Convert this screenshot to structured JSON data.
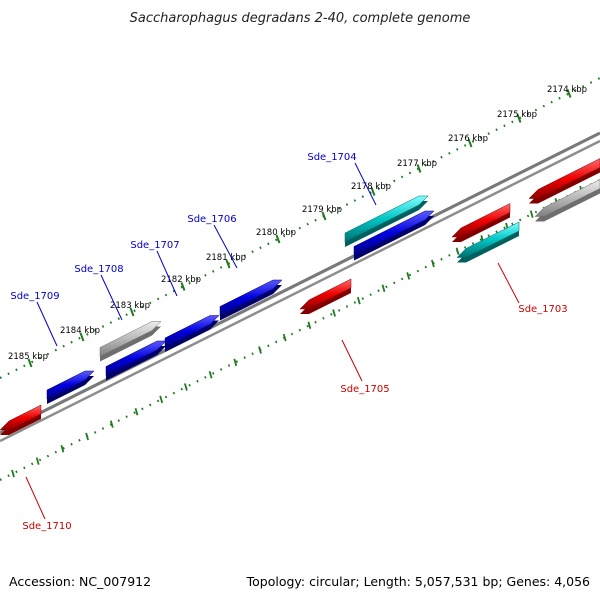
{
  "title": "Saccharophagus degradans 2-40, complete genome",
  "accession": "Accession: NC_007912",
  "summary": "Topology: circular; Length: 5,057,531 bp; Genes: 4,056",
  "colors": {
    "backbone": "#7a7a7a",
    "ticks": "#1e7a1e",
    "forward_label": "#0000cc",
    "reverse_label": "#cc0000",
    "cds_blue": "#0000dd",
    "cds_red": "#ee0000",
    "cds_cyan": "#00c4c4",
    "cds_gray": "#b8b8b8"
  },
  "ticks": [
    {
      "label": "2174 kbp"
    },
    {
      "label": "2175 kbp"
    },
    {
      "label": "2176 kbp"
    },
    {
      "label": "2177 kbp"
    },
    {
      "label": "2178 kbp"
    },
    {
      "label": "2179 kbp"
    },
    {
      "label": "2180 kbp"
    },
    {
      "label": "2181 kbp"
    },
    {
      "label": "2182 kbp"
    },
    {
      "label": "2183 kbp"
    },
    {
      "label": "2184 kbp"
    },
    {
      "label": "2185 kbp"
    }
  ],
  "gene_labels": [
    {
      "name": "Sde_1704",
      "strand": "forward"
    },
    {
      "name": "Sde_1706",
      "strand": "forward"
    },
    {
      "name": "Sde_1707",
      "strand": "forward"
    },
    {
      "name": "Sde_1708",
      "strand": "forward"
    },
    {
      "name": "Sde_1709",
      "strand": "forward"
    },
    {
      "name": "Sde_1703",
      "strand": "reverse"
    },
    {
      "name": "Sde_1705",
      "strand": "reverse"
    },
    {
      "name": "Sde_1710",
      "strand": "reverse"
    }
  ]
}
